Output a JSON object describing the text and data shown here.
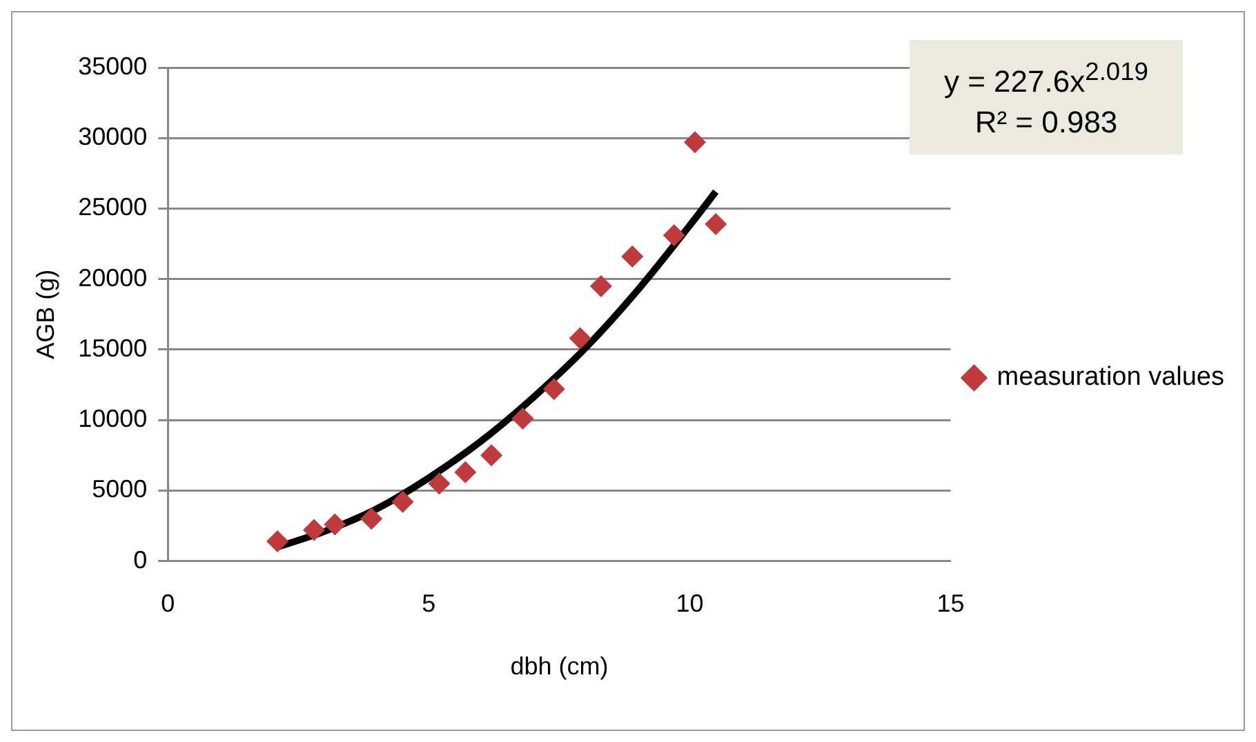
{
  "chart_data": {
    "type": "scatter",
    "xlabel": "dbh (cm)",
    "ylabel": "AGB (g)",
    "xlim": [
      0,
      15
    ],
    "xticks": [
      0,
      5,
      10,
      15
    ],
    "ylim": [
      0,
      35000
    ],
    "yticks": [
      0,
      5000,
      10000,
      15000,
      20000,
      25000,
      30000,
      35000
    ],
    "grid": "y",
    "legend": "right",
    "marker": "diamond",
    "annotations": [
      "y = 227.6x$^{2.019}$\nR² = 0.983"
    ],
    "series": [
      {
        "name": "measuration values",
        "color": "#c0393b",
        "x": [
          2.1,
          2.8,
          3.2,
          3.9,
          4.5,
          5.2,
          5.7,
          6.2,
          6.8,
          7.4,
          7.9,
          8.3,
          8.9,
          9.7,
          10.1,
          10.5
        ],
        "values": [
          1400,
          2200,
          2600,
          3000,
          4200,
          5500,
          6300,
          7500,
          10100,
          12200,
          15800,
          19500,
          21600,
          23100,
          29700,
          23900
        ]
      },
      {
        "type": "line",
        "color": "#000000",
        "line_style": "solid",
        "marker": "none",
        "x": [
          2.1,
          3,
          4,
          5,
          6,
          7,
          8,
          9,
          10,
          10.5
        ],
        "values": [
          1000,
          2100,
          3700,
          5900,
          8500,
          11600,
          15100,
          19200,
          23800,
          26200
        ]
      }
    ]
  }
}
